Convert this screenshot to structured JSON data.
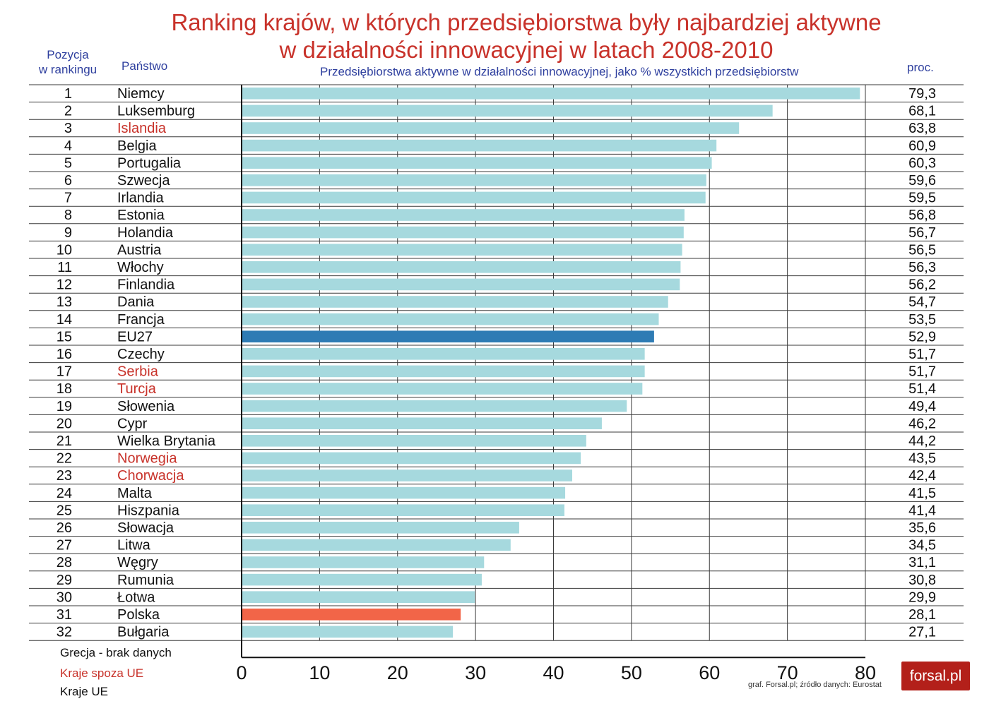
{
  "title_line1": "Ranking krajów, w których przedsiębiorstwa były najbardziej aktywne",
  "title_line2": "w działalności innowacyjnej w latach 2008-2010",
  "header": {
    "position_line1": "Pozycja",
    "position_line2": "w rankingu",
    "country": "Państwo",
    "percent": "proc."
  },
  "chart_data": {
    "type": "bar",
    "orientation": "horizontal",
    "subtitle": "Przedsiębiorstwa aktywne w działalności innowacyjnej, jako % wszystkich przedsiębiorstw",
    "xlim": [
      0,
      80
    ],
    "xticks": [
      "0",
      "10",
      "20",
      "30",
      "40",
      "50",
      "60",
      "70",
      "80"
    ],
    "grid": true,
    "rows": [
      {
        "rank": "1",
        "country": "Niemcy",
        "value": 79.3,
        "label": "79,3",
        "group": "eu"
      },
      {
        "rank": "2",
        "country": "Luksemburg",
        "value": 68.1,
        "label": "68,1",
        "group": "eu"
      },
      {
        "rank": "3",
        "country": "Islandia",
        "value": 63.8,
        "label": "63,8",
        "group": "non-eu"
      },
      {
        "rank": "4",
        "country": "Belgia",
        "value": 60.9,
        "label": "60,9",
        "group": "eu"
      },
      {
        "rank": "5",
        "country": "Portugalia",
        "value": 60.3,
        "label": "60,3",
        "group": "eu"
      },
      {
        "rank": "6",
        "country": "Szwecja",
        "value": 59.6,
        "label": "59,6",
        "group": "eu"
      },
      {
        "rank": "7",
        "country": "Irlandia",
        "value": 59.5,
        "label": "59,5",
        "group": "eu"
      },
      {
        "rank": "8",
        "country": "Estonia",
        "value": 56.8,
        "label": "56,8",
        "group": "eu"
      },
      {
        "rank": "9",
        "country": "Holandia",
        "value": 56.7,
        "label": "56,7",
        "group": "eu"
      },
      {
        "rank": "10",
        "country": "Austria",
        "value": 56.5,
        "label": "56,5",
        "group": "eu"
      },
      {
        "rank": "11",
        "country": "Włochy",
        "value": 56.3,
        "label": "56,3",
        "group": "eu"
      },
      {
        "rank": "12",
        "country": "Finlandia",
        "value": 56.2,
        "label": "56,2",
        "group": "eu"
      },
      {
        "rank": "13",
        "country": "Dania",
        "value": 54.7,
        "label": "54,7",
        "group": "eu"
      },
      {
        "rank": "14",
        "country": "Francja",
        "value": 53.5,
        "label": "53,5",
        "group": "eu"
      },
      {
        "rank": "15",
        "country": "EU27",
        "value": 52.9,
        "label": "52,9",
        "group": "eu27"
      },
      {
        "rank": "16",
        "country": "Czechy",
        "value": 51.7,
        "label": "51,7",
        "group": "eu"
      },
      {
        "rank": "17",
        "country": "Serbia",
        "value": 51.7,
        "label": "51,7",
        "group": "non-eu"
      },
      {
        "rank": "18",
        "country": "Turcja",
        "value": 51.4,
        "label": "51,4",
        "group": "non-eu"
      },
      {
        "rank": "19",
        "country": "Słowenia",
        "value": 49.4,
        "label": "49,4",
        "group": "eu"
      },
      {
        "rank": "20",
        "country": "Cypr",
        "value": 46.2,
        "label": "46,2",
        "group": "eu"
      },
      {
        "rank": "21",
        "country": "Wielka Brytania",
        "value": 44.2,
        "label": "44,2",
        "group": "eu"
      },
      {
        "rank": "22",
        "country": "Norwegia",
        "value": 43.5,
        "label": "43,5",
        "group": "non-eu"
      },
      {
        "rank": "23",
        "country": "Chorwacja",
        "value": 42.4,
        "label": "42,4",
        "group": "non-eu"
      },
      {
        "rank": "24",
        "country": "Malta",
        "value": 41.5,
        "label": "41,5",
        "group": "eu"
      },
      {
        "rank": "25",
        "country": "Hiszpania",
        "value": 41.4,
        "label": "41,4",
        "group": "eu"
      },
      {
        "rank": "26",
        "country": "Słowacja",
        "value": 35.6,
        "label": "35,6",
        "group": "eu"
      },
      {
        "rank": "27",
        "country": "Litwa",
        "value": 34.5,
        "label": "34,5",
        "group": "eu"
      },
      {
        "rank": "28",
        "country": "Węgry",
        "value": 31.1,
        "label": "31,1",
        "group": "eu"
      },
      {
        "rank": "29",
        "country": "Rumunia",
        "value": 30.8,
        "label": "30,8",
        "group": "eu"
      },
      {
        "rank": "30",
        "country": "Łotwa",
        "value": 29.9,
        "label": "29,9",
        "group": "eu"
      },
      {
        "rank": "31",
        "country": "Polska",
        "value": 28.1,
        "label": "28,1",
        "group": "poland"
      },
      {
        "rank": "32",
        "country": "Bułgaria",
        "value": 27.1,
        "label": "27,1",
        "group": "eu"
      }
    ]
  },
  "colors": {
    "bar": "#a6d9de",
    "eu27": "#2e7bb4",
    "poland": "#f26548",
    "non_eu_text": "#c8322a",
    "eu_text": "#111111",
    "header_text": "#2e3f9e"
  },
  "legend": {
    "no_data": "Grecja - brak danych",
    "non_eu": "Kraje spoza UE",
    "eu": "Kraje UE"
  },
  "source": "graf. Forsal.pl; źródło danych: Eurostat",
  "logo": "forsal.pl"
}
